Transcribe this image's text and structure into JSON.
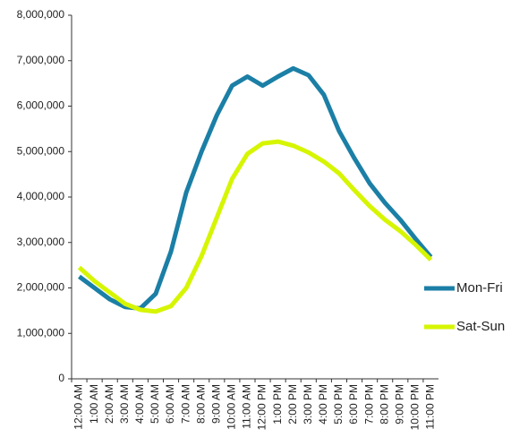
{
  "chart_data": {
    "type": "line",
    "categories": [
      "12:00 AM",
      "1:00 AM",
      "2:00 AM",
      "3:00 AM",
      "4:00 AM",
      "5:00 AM",
      "6:00 AM",
      "7:00 AM",
      "8:00 AM",
      "9:00 AM",
      "10:00 AM",
      "11:00 AM",
      "12:00 PM",
      "1:00 PM",
      "2:00 PM",
      "3:00 PM",
      "4:00 PM",
      "5:00 PM",
      "6:00 PM",
      "7:00 PM",
      "8:00 PM",
      "9:00 PM",
      "10:00 PM",
      "11:00 PM"
    ],
    "series": [
      {
        "name": "Mon-Fri",
        "color": "#1b7fa6",
        "values": [
          2250000,
          2000000,
          1750000,
          1580000,
          1550000,
          1870000,
          2800000,
          4100000,
          5000000,
          5800000,
          6450000,
          6650000,
          6450000,
          6650000,
          6830000,
          6680000,
          6250000,
          5450000,
          4850000,
          4300000,
          3870000,
          3500000,
          3080000,
          2680000
        ]
      },
      {
        "name": "Sat-Sun",
        "color": "#d6f500",
        "values": [
          2450000,
          2150000,
          1900000,
          1650000,
          1520000,
          1480000,
          1600000,
          2000000,
          2700000,
          3550000,
          4400000,
          4950000,
          5180000,
          5220000,
          5130000,
          4980000,
          4780000,
          4520000,
          4150000,
          3800000,
          3500000,
          3250000,
          2950000,
          2620000
        ]
      }
    ],
    "ylim": [
      0,
      8000000
    ],
    "yticks": [
      0,
      {
        "value": 1000000,
        "label": "1,000,000"
      },
      {
        "value": 2000000,
        "label": "2,000,000"
      },
      {
        "value": 3000000,
        "label": "3,000,000"
      },
      {
        "value": 4000000,
        "label": "4,000,000"
      },
      {
        "value": 5000000,
        "label": "5,000,000"
      },
      {
        "value": 6000000,
        "label": "6,000,000"
      },
      {
        "value": 7000000,
        "label": "7,000,000"
      },
      {
        "value": 8000000,
        "label": "8,000,000"
      }
    ],
    "grid": false,
    "legend": "right"
  }
}
